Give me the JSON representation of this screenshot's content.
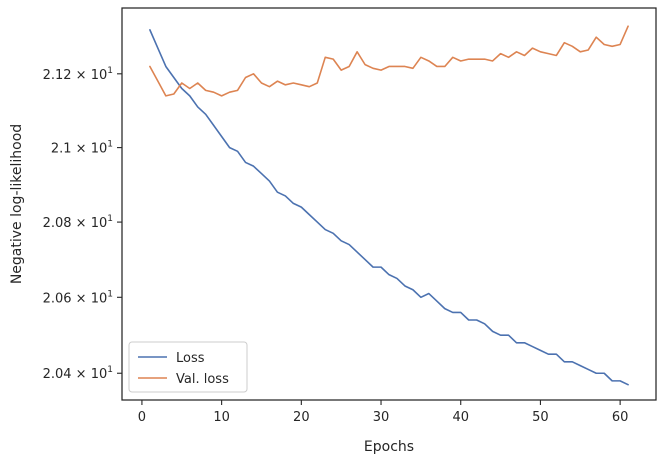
{
  "chart_data": {
    "type": "line",
    "xlabel": "Epochs",
    "ylabel": "Negative log-likelihood",
    "xlim": [
      -2.5,
      64.5
    ],
    "ylim": [
      20.33,
      21.38
    ],
    "yscale": "log",
    "grid": false,
    "legend_position": "lower-left",
    "x_ticks": [
      {
        "value": 0,
        "label": "0"
      },
      {
        "value": 10,
        "label": "10"
      },
      {
        "value": 20,
        "label": "20"
      },
      {
        "value": 30,
        "label": "30"
      },
      {
        "value": 40,
        "label": "40"
      },
      {
        "value": 50,
        "label": "50"
      },
      {
        "value": 60,
        "label": "60"
      }
    ],
    "y_ticks": [
      {
        "value": 20.4,
        "mantissa": "2.04",
        "base": "10",
        "exp": "1"
      },
      {
        "value": 20.6,
        "mantissa": "2.06",
        "base": "10",
        "exp": "1"
      },
      {
        "value": 20.8,
        "mantissa": "2.08",
        "base": "10",
        "exp": "1"
      },
      {
        "value": 21.0,
        "mantissa": "2.1",
        "base": "10",
        "exp": "1"
      },
      {
        "value": 21.2,
        "mantissa": "2.12",
        "base": "10",
        "exp": "1"
      }
    ],
    "x": [
      1,
      2,
      3,
      4,
      5,
      6,
      7,
      8,
      9,
      10,
      11,
      12,
      13,
      14,
      15,
      16,
      17,
      18,
      19,
      20,
      21,
      22,
      23,
      24,
      25,
      26,
      27,
      28,
      29,
      30,
      31,
      32,
      33,
      34,
      35,
      36,
      37,
      38,
      39,
      40,
      41,
      42,
      43,
      44,
      45,
      46,
      47,
      48,
      49,
      50,
      51,
      52,
      53,
      54,
      55,
      56,
      57,
      58,
      59,
      60,
      61
    ],
    "series": [
      {
        "name": "Loss",
        "color": "#4c72b0",
        "values": [
          21.32,
          21.27,
          21.22,
          21.19,
          21.16,
          21.14,
          21.11,
          21.09,
          21.06,
          21.03,
          21.0,
          20.99,
          20.96,
          20.95,
          20.93,
          20.91,
          20.88,
          20.87,
          20.85,
          20.84,
          20.82,
          20.8,
          20.78,
          20.77,
          20.75,
          20.74,
          20.72,
          20.7,
          20.68,
          20.68,
          20.66,
          20.65,
          20.63,
          20.62,
          20.6,
          20.61,
          20.59,
          20.57,
          20.56,
          20.56,
          20.54,
          20.54,
          20.53,
          20.51,
          20.5,
          20.5,
          20.48,
          20.48,
          20.47,
          20.46,
          20.45,
          20.45,
          20.43,
          20.43,
          20.42,
          20.41,
          20.4,
          20.4,
          20.38,
          20.38,
          20.37
        ]
      },
      {
        "name": "Val. loss",
        "color": "#dd8452",
        "values": [
          21.22,
          21.18,
          21.14,
          21.145,
          21.175,
          21.16,
          21.175,
          21.155,
          21.15,
          21.14,
          21.15,
          21.155,
          21.19,
          21.2,
          21.175,
          21.165,
          21.18,
          21.17,
          21.175,
          21.17,
          21.165,
          21.175,
          21.245,
          21.24,
          21.21,
          21.22,
          21.26,
          21.225,
          21.215,
          21.21,
          21.22,
          21.22,
          21.22,
          21.215,
          21.245,
          21.235,
          21.22,
          21.22,
          21.245,
          21.235,
          21.24,
          21.24,
          21.24,
          21.235,
          21.255,
          21.245,
          21.26,
          21.25,
          21.27,
          21.26,
          21.255,
          21.25,
          21.285,
          21.275,
          21.26,
          21.265,
          21.3,
          21.28,
          21.275,
          21.28,
          21.33
        ]
      }
    ]
  }
}
